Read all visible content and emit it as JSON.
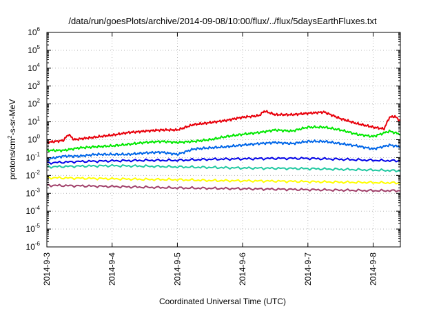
{
  "chart_data": {
    "type": "line",
    "title": "/data/run/goesPlots/archive/2014-09-08/10:00/flux/../flux/5daysEarthFluxes.txt",
    "xlabel": "Coordinated Universal Time (UTC)",
    "ylabel": {
      "base": "protons/cm",
      "exp": "2",
      "rest": "-s-sr-MeV"
    },
    "y_scale": "log",
    "ylim": [
      1e-06,
      1000000.0
    ],
    "y_ticks": [
      {
        "value": 1e-06,
        "base": "10",
        "exp": "-6"
      },
      {
        "value": 1e-05,
        "base": "10",
        "exp": "-5"
      },
      {
        "value": 0.0001,
        "base": "10",
        "exp": "-4"
      },
      {
        "value": 0.001,
        "base": "10",
        "exp": "-3"
      },
      {
        "value": 0.01,
        "base": "10",
        "exp": "-2"
      },
      {
        "value": 0.1,
        "base": "10",
        "exp": "-1"
      },
      {
        "value": 1,
        "base": "10",
        "exp": "0"
      },
      {
        "value": 10.0,
        "base": "10",
        "exp": "1"
      },
      {
        "value": 100.0,
        "base": "10",
        "exp": "2"
      },
      {
        "value": 1000.0,
        "base": "10",
        "exp": "3"
      },
      {
        "value": 10000.0,
        "base": "10",
        "exp": "4"
      },
      {
        "value": 100000.0,
        "base": "10",
        "exp": "5"
      },
      {
        "value": 1000000.0,
        "base": "10",
        "exp": "6"
      }
    ],
    "xlim": [
      "2014-09-03",
      "2014-09-08 10:00"
    ],
    "x_ticks": [
      "2014-9-3",
      "2014-9-4",
      "2014-9-5",
      "2014-9-6",
      "2014-9-7",
      "2014-9-8"
    ],
    "grid": true,
    "legend": "none",
    "series": [
      {
        "color": "#e8000b",
        "x": [
          "2014-09-03 00:00",
          "2014-09-03 06:00",
          "2014-09-03 08:00",
          "2014-09-03 10:00",
          "2014-09-03 12:00",
          "2014-09-03 18:00",
          "2014-09-04 00:00",
          "2014-09-04 06:00",
          "2014-09-04 12:00",
          "2014-09-04 18:00",
          "2014-09-05 00:00",
          "2014-09-05 06:00",
          "2014-09-05 12:00",
          "2014-09-05 18:00",
          "2014-09-06 00:00",
          "2014-09-06 06:00",
          "2014-09-06 08:00",
          "2014-09-06 12:00",
          "2014-09-06 18:00",
          "2014-09-07 00:00",
          "2014-09-07 06:00",
          "2014-09-07 12:00",
          "2014-09-07 18:00",
          "2014-09-08 00:00",
          "2014-09-08 04:00",
          "2014-09-08 06:00",
          "2014-09-08 08:00",
          "2014-09-08 10:00"
        ],
        "y": [
          0.7,
          0.9,
          2.0,
          1.0,
          1.1,
          1.4,
          1.8,
          2.5,
          3.0,
          3.5,
          3.5,
          7,
          9,
          12,
          18,
          22,
          40,
          25,
          25,
          30,
          35,
          15,
          8,
          5,
          4,
          18,
          20,
          11
        ]
      },
      {
        "color": "#00e800",
        "x": [
          "2014-09-03 00:00",
          "2014-09-03 06:00",
          "2014-09-03 12:00",
          "2014-09-03 18:00",
          "2014-09-04 00:00",
          "2014-09-04 06:00",
          "2014-09-04 12:00",
          "2014-09-04 18:00",
          "2014-09-05 00:00",
          "2014-09-05 06:00",
          "2014-09-05 12:00",
          "2014-09-05 18:00",
          "2014-09-06 00:00",
          "2014-09-06 06:00",
          "2014-09-06 12:00",
          "2014-09-06 18:00",
          "2014-09-07 00:00",
          "2014-09-07 06:00",
          "2014-09-07 12:00",
          "2014-09-07 18:00",
          "2014-09-08 00:00",
          "2014-09-08 06:00",
          "2014-09-08 10:00"
        ],
        "y": [
          0.25,
          0.25,
          0.35,
          0.4,
          0.45,
          0.55,
          0.7,
          0.8,
          0.7,
          0.8,
          1.0,
          1.5,
          2.0,
          2.5,
          3.5,
          3.0,
          5.0,
          5.0,
          3.5,
          2.0,
          1.5,
          3.0,
          2.0
        ]
      },
      {
        "color": "#0066e8",
        "x": [
          "2014-09-03 00:00",
          "2014-09-03 06:00",
          "2014-09-03 12:00",
          "2014-09-03 18:00",
          "2014-09-04 00:00",
          "2014-09-04 06:00",
          "2014-09-04 12:00",
          "2014-09-04 18:00",
          "2014-09-05 00:00",
          "2014-09-05 06:00",
          "2014-09-05 12:00",
          "2014-09-05 18:00",
          "2014-09-06 00:00",
          "2014-09-06 06:00",
          "2014-09-06 12:00",
          "2014-09-06 18:00",
          "2014-09-07 00:00",
          "2014-09-07 06:00",
          "2014-09-07 12:00",
          "2014-09-07 18:00",
          "2014-09-08 00:00",
          "2014-09-08 06:00",
          "2014-09-08 10:00"
        ],
        "y": [
          0.08,
          0.12,
          0.12,
          0.15,
          0.15,
          0.15,
          0.18,
          0.2,
          0.15,
          0.3,
          0.35,
          0.4,
          0.5,
          0.6,
          0.7,
          0.6,
          0.8,
          0.8,
          0.6,
          0.45,
          0.3,
          0.5,
          0.4
        ]
      },
      {
        "color": "#0000e8",
        "x": [
          "2014-09-03 00:00",
          "2014-09-03 12:00",
          "2014-09-04 00:00",
          "2014-09-04 12:00",
          "2014-09-05 00:00",
          "2014-09-05 12:00",
          "2014-09-06 00:00",
          "2014-09-06 12:00",
          "2014-09-07 00:00",
          "2014-09-07 12:00",
          "2014-09-08 00:00",
          "2014-09-08 10:00"
        ],
        "y": [
          0.05,
          0.06,
          0.065,
          0.07,
          0.07,
          0.08,
          0.085,
          0.09,
          0.09,
          0.08,
          0.07,
          0.065
        ]
      },
      {
        "color": "#1fc8a0",
        "x": [
          "2014-09-03 00:00",
          "2014-09-03 12:00",
          "2014-09-04 00:00",
          "2014-09-04 12:00",
          "2014-09-05 00:00",
          "2014-09-05 12:00",
          "2014-09-06 00:00",
          "2014-09-06 12:00",
          "2014-09-07 00:00",
          "2014-09-07 12:00",
          "2014-09-08 00:00",
          "2014-09-08 10:00"
        ],
        "y": [
          0.03,
          0.033,
          0.035,
          0.033,
          0.03,
          0.028,
          0.026,
          0.025,
          0.024,
          0.022,
          0.02,
          0.018
        ]
      },
      {
        "color": "#ffff00",
        "x": [
          "2014-09-03 00:00",
          "2014-09-03 12:00",
          "2014-09-04 00:00",
          "2014-09-04 12:00",
          "2014-09-05 00:00",
          "2014-09-05 12:00",
          "2014-09-06 00:00",
          "2014-09-06 12:00",
          "2014-09-07 00:00",
          "2014-09-07 12:00",
          "2014-09-08 00:00",
          "2014-09-08 10:00"
        ],
        "y": [
          0.0075,
          0.007,
          0.0065,
          0.006,
          0.0058,
          0.0052,
          0.005,
          0.0048,
          0.0045,
          0.0042,
          0.004,
          0.0038
        ]
      },
      {
        "color": "#a0406a",
        "x": [
          "2014-09-03 00:00",
          "2014-09-03 12:00",
          "2014-09-04 00:00",
          "2014-09-04 12:00",
          "2014-09-05 00:00",
          "2014-09-05 12:00",
          "2014-09-06 00:00",
          "2014-09-06 12:00",
          "2014-09-07 00:00",
          "2014-09-07 12:00",
          "2014-09-08 00:00",
          "2014-09-08 10:00"
        ],
        "y": [
          0.0028,
          0.0026,
          0.0024,
          0.0022,
          0.002,
          0.0019,
          0.0018,
          0.0017,
          0.0016,
          0.0015,
          0.0014,
          0.0014
        ]
      }
    ]
  }
}
